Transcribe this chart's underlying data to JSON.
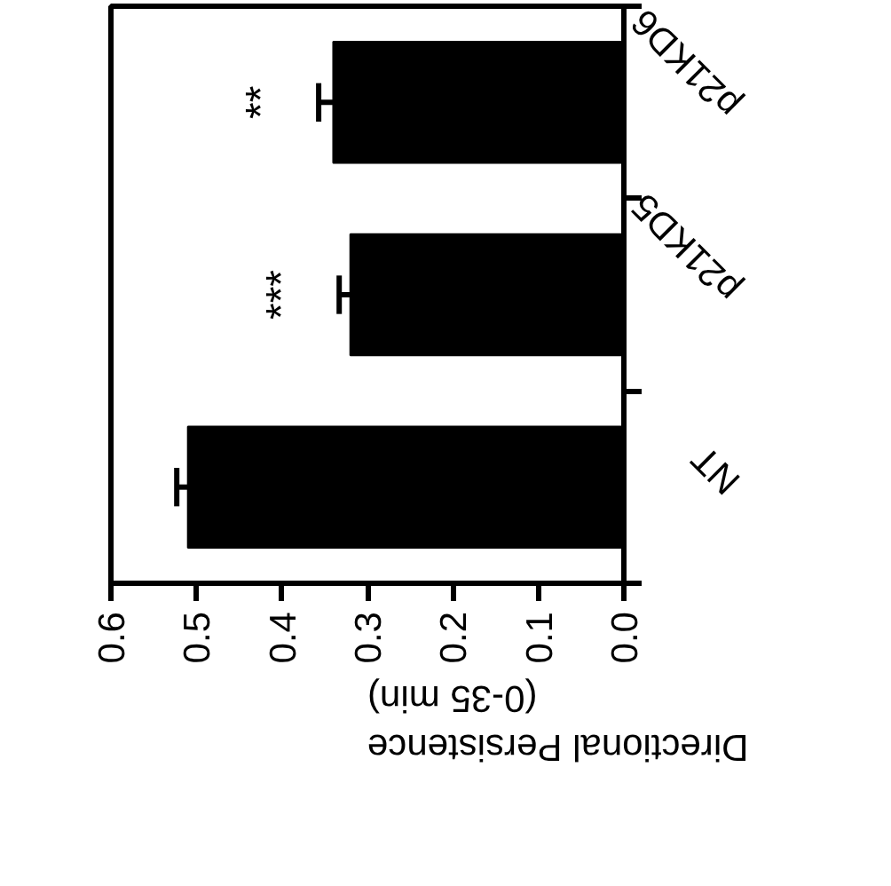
{
  "chart_data": {
    "type": "bar",
    "orientation": "horizontal",
    "xlabel": "Directional Persistence\n(0-35 min)",
    "categories": [
      "p21KD6",
      "p21KD5",
      "NT"
    ],
    "values": [
      0.34,
      0.32,
      0.51
    ],
    "errors": [
      0.017,
      0.013,
      0.013
    ],
    "color": "#000000",
    "xlim": [
      0.6,
      0
    ],
    "xticks": [
      0.6,
      0.5,
      0.4,
      0.3,
      0.2,
      0.1,
      {
        "value": 0,
        "label": "0.0"
      }
    ],
    "annotations": [
      "**",
      "***"
    ]
  }
}
